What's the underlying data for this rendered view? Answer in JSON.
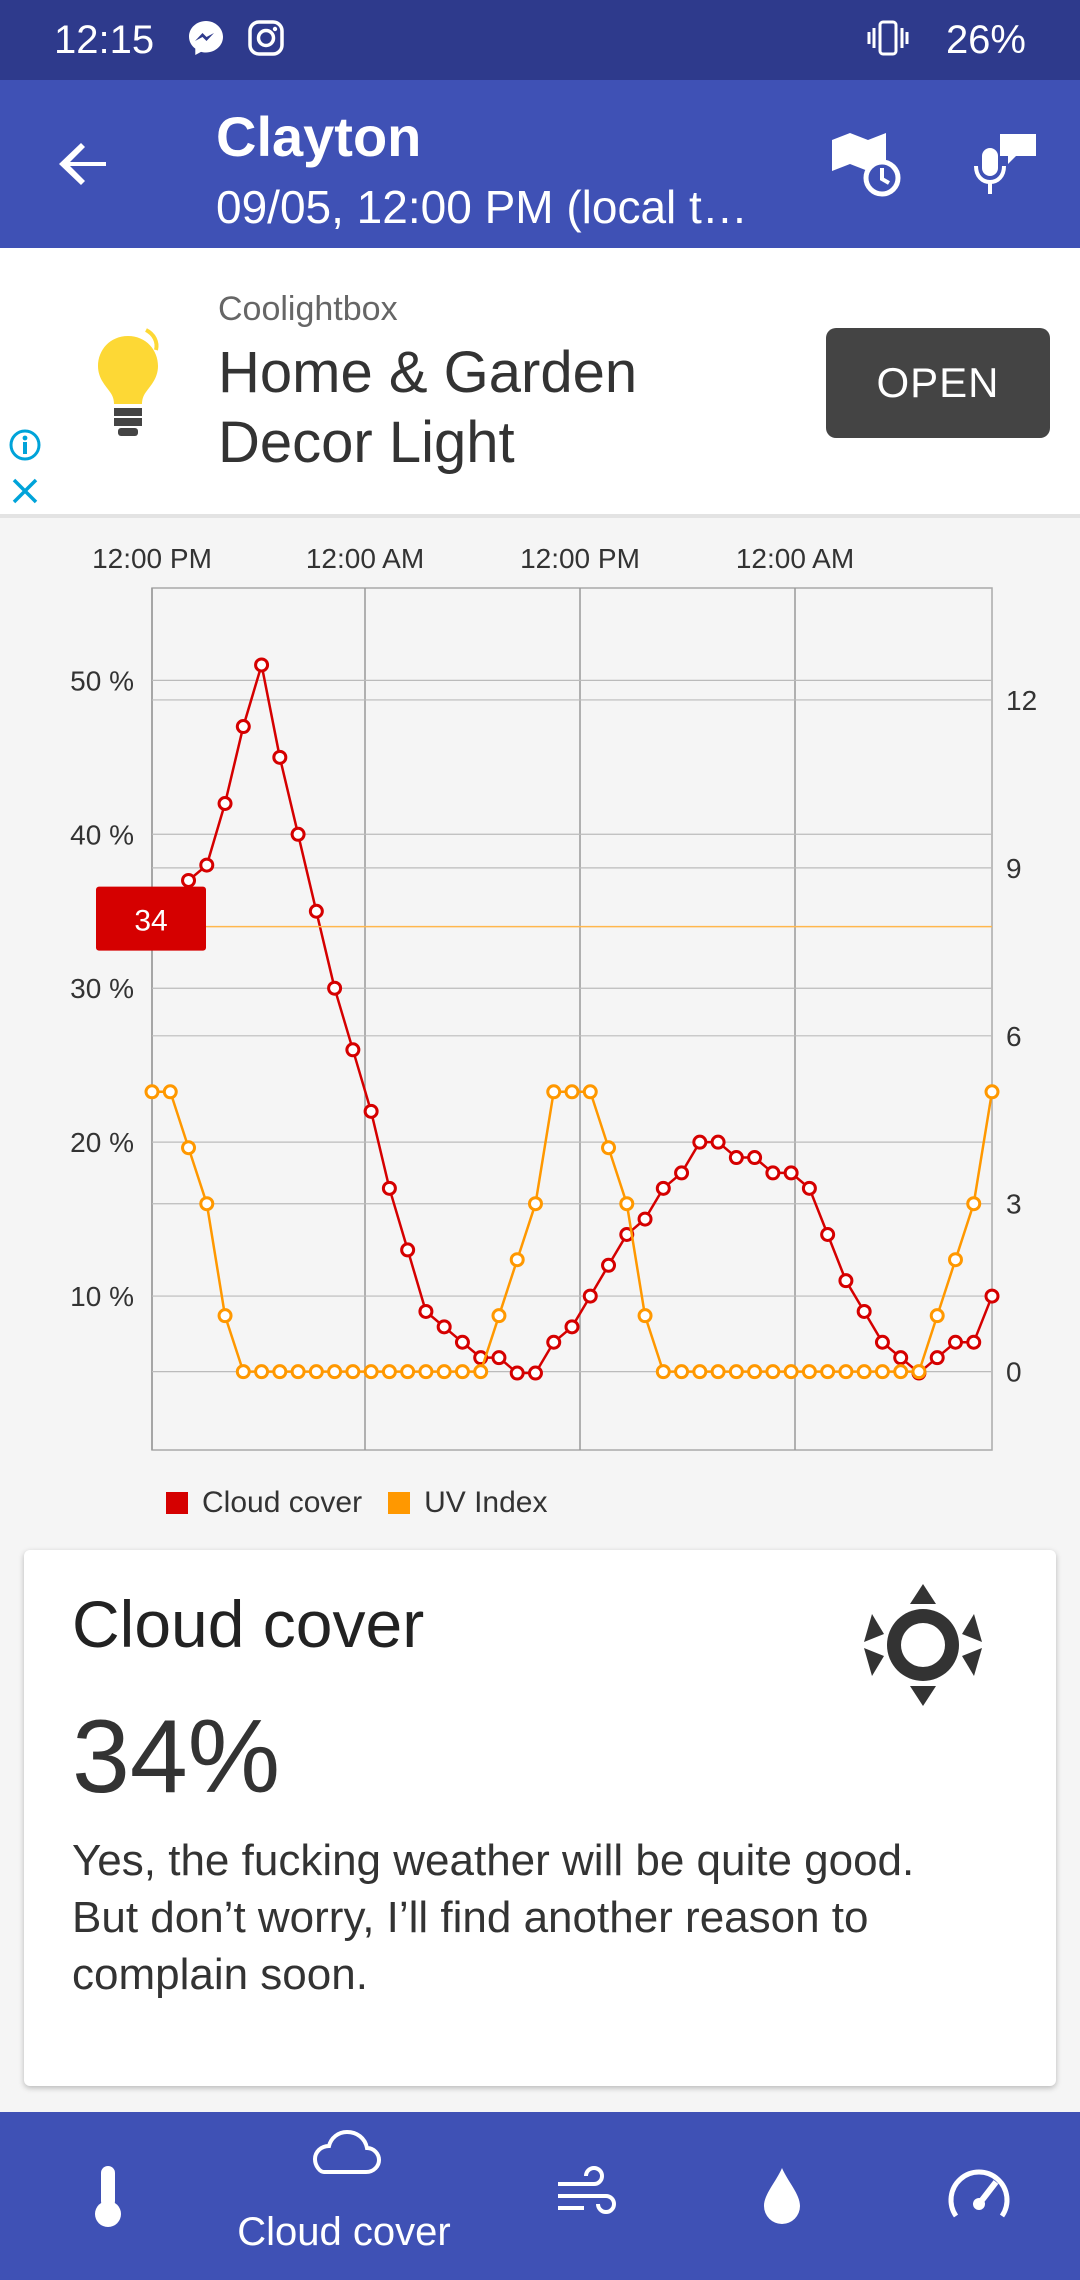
{
  "status_bar": {
    "time": "12:15",
    "battery": "26%"
  },
  "app_bar": {
    "title": "Clayton",
    "subtitle": "09/05, 12:00 PM (local t…"
  },
  "ad": {
    "advertiser": "Coolightbox",
    "headline": "Home & Garden Decor Light",
    "cta": "OPEN"
  },
  "chart_data": {
    "type": "line",
    "x_tick_labels": [
      "12:00 PM",
      "12:00 AM",
      "12:00 PM",
      "12:00 AM"
    ],
    "y_left_labels": [
      "50 %",
      "40 %",
      "30 %",
      "20 %",
      "10 %"
    ],
    "y_right_labels": [
      "12",
      "9",
      "6",
      "3",
      "0"
    ],
    "y_left_range": [
      0,
      56
    ],
    "y_right_range": [
      -1.4,
      14
    ],
    "grid": true,
    "legend_position": "bottom",
    "marker_label": "34",
    "series": [
      {
        "name": "Cloud cover",
        "axis": "left",
        "color": "#d50000",
        "values": [
          34,
          34,
          37,
          38,
          42,
          47,
          51,
          45,
          40,
          35,
          30,
          26,
          22,
          17,
          13,
          9,
          8,
          7,
          6,
          6,
          5,
          5,
          7,
          8,
          10,
          12,
          14,
          15,
          17,
          18,
          20,
          20,
          19,
          19,
          18,
          18,
          17,
          14,
          11,
          9,
          7,
          6,
          5,
          6,
          7,
          7,
          10
        ]
      },
      {
        "name": "UV Index",
        "axis": "left",
        "color": "#ff9800",
        "values": [
          5,
          5,
          4,
          3,
          1,
          0,
          0,
          0,
          0,
          0,
          0,
          0,
          0,
          0,
          0,
          0,
          0,
          0,
          0,
          1,
          2,
          3,
          5,
          5,
          5,
          4,
          3,
          1,
          0,
          0,
          0,
          0,
          0,
          0,
          0,
          0,
          0,
          0,
          0,
          0,
          0,
          0,
          0,
          1,
          2,
          3,
          5
        ]
      }
    ]
  },
  "detail_card": {
    "title": "Cloud cover",
    "value": "34%",
    "description": "Yes, the fucking weather will be quite good.\nBut don’t worry, I’ll find another reason to complain soon."
  },
  "bottom_nav": {
    "items": [
      {
        "icon": "thermometer-icon",
        "label": ""
      },
      {
        "icon": "cloud-icon",
        "label": "Cloud cover"
      },
      {
        "icon": "wind-icon",
        "label": ""
      },
      {
        "icon": "drop-icon",
        "label": ""
      },
      {
        "icon": "gauge-icon",
        "label": ""
      }
    ],
    "selected": 1
  }
}
